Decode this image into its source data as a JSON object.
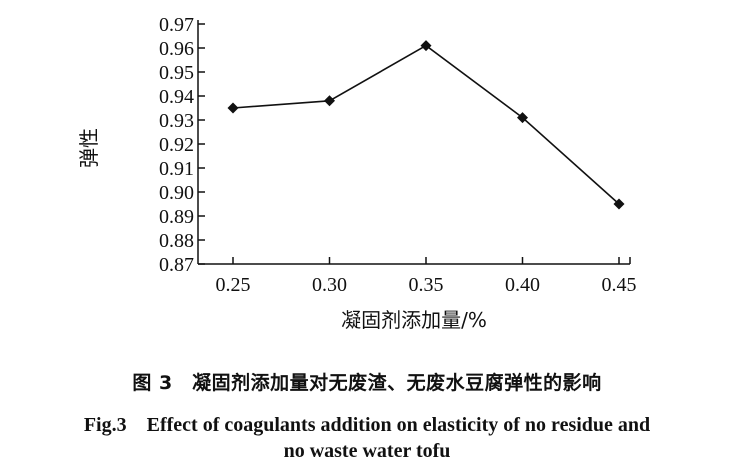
{
  "chart_data": {
    "type": "line",
    "x": [
      0.25,
      0.3,
      0.35,
      0.4,
      0.45
    ],
    "x_tick_labels": [
      "0.25",
      "0.30",
      "0.35",
      "0.40",
      "0.45"
    ],
    "y_ticks": [
      0.87,
      0.88,
      0.89,
      0.9,
      0.91,
      0.92,
      0.93,
      0.94,
      0.95,
      0.96,
      0.97
    ],
    "y_tick_labels": [
      "0.87",
      "0.88",
      "0.89",
      "0.90",
      "0.91",
      "0.92",
      "0.93",
      "0.94",
      "0.95",
      "0.96",
      "0.97"
    ],
    "series": [
      {
        "values": [
          0.935,
          0.938,
          0.961,
          0.931,
          0.895
        ]
      }
    ],
    "xlabel": "凝固剂添加量/%",
    "ylabel": "弹性",
    "ylim": [
      0.87,
      0.97
    ],
    "grid": false,
    "marker": "diamond",
    "line_color": "#111111"
  },
  "caption": {
    "zh": "图 3　凝固剂添加量对无废渣、无废水豆腐弹性的影响",
    "en_line1": "Fig.3　Effect of coagulants addition on elasticity of no residue and",
    "en_line2": "no waste water tofu"
  }
}
